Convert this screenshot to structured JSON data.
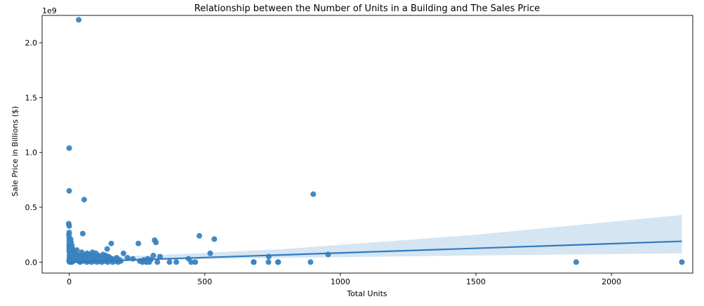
{
  "chart_data": {
    "type": "scatter",
    "title": "Relationship between the Number of Units in a Building and The Sales Price",
    "xlabel": "Total Units",
    "ylabel": "Sale Price in Billions ($)",
    "y_offset_text": "1e9",
    "xlim": [
      -100,
      2300
    ],
    "ylim": [
      -0.1,
      2.25
    ],
    "xticks": [
      0,
      500,
      1000,
      1500,
      2000
    ],
    "xtick_labels": [
      "0",
      "500",
      "1000",
      "1500",
      "2000"
    ],
    "yticks": [
      0.0,
      0.5,
      1.0,
      1.5,
      2.0
    ],
    "ytick_labels": [
      "0.0",
      "0.5",
      "1.0",
      "1.5",
      "2.0"
    ],
    "grid": false,
    "series": [
      {
        "color": "#3a83bf",
        "points": [
          [
            35,
            2.21
          ],
          [
            0,
            1.04
          ],
          [
            0,
            0.65
          ],
          [
            55,
            0.57
          ],
          [
            900,
            0.62
          ],
          [
            -2,
            0.35
          ],
          [
            0,
            0.33
          ],
          [
            0,
            0.27
          ],
          [
            -1,
            0.25
          ],
          [
            0,
            0.22
          ],
          [
            0,
            0.19
          ],
          [
            0,
            0.16
          ],
          [
            0,
            0.14
          ],
          [
            0,
            0.12
          ],
          [
            0,
            0.1
          ],
          [
            2,
            0.08
          ],
          [
            1,
            0.06
          ],
          [
            3,
            0.05
          ],
          [
            1,
            0.04
          ],
          [
            2,
            0.03
          ],
          [
            0,
            0.02
          ],
          [
            1,
            0.015
          ],
          [
            2,
            0.01
          ],
          [
            0,
            0.005
          ],
          [
            3,
            0.0
          ],
          [
            5,
            0.21
          ],
          [
            7,
            0.18
          ],
          [
            10,
            0.15
          ],
          [
            12,
            0.12
          ],
          [
            8,
            0.1
          ],
          [
            6,
            0.09
          ],
          [
            4,
            0.07
          ],
          [
            9,
            0.05
          ],
          [
            11,
            0.03
          ],
          [
            13,
            0.02
          ],
          [
            15,
            0.01
          ],
          [
            5,
            0.005
          ],
          [
            8,
            0.0
          ],
          [
            10,
            0.0
          ],
          [
            14,
            0.04
          ],
          [
            18,
            0.06
          ],
          [
            20,
            0.09
          ],
          [
            22,
            0.04
          ],
          [
            25,
            0.02
          ],
          [
            28,
            0.11
          ],
          [
            30,
            0.05
          ],
          [
            32,
            0.02
          ],
          [
            35,
            0.01
          ],
          [
            38,
            0.03
          ],
          [
            40,
            0.0
          ],
          [
            42,
            0.06
          ],
          [
            45,
            0.02
          ],
          [
            48,
            0.04
          ],
          [
            50,
            0.26
          ],
          [
            52,
            0.01
          ],
          [
            55,
            0.05
          ],
          [
            58,
            0.03
          ],
          [
            60,
            0.07
          ],
          [
            62,
            0.02
          ],
          [
            65,
            0.0
          ],
          [
            68,
            0.04
          ],
          [
            70,
            0.06
          ],
          [
            72,
            0.01
          ],
          [
            75,
            0.03
          ],
          [
            78,
            0.05
          ],
          [
            80,
            0.02
          ],
          [
            82,
            0.0
          ],
          [
            85,
            0.04
          ],
          [
            88,
            0.06
          ],
          [
            90,
            0.01
          ],
          [
            92,
            0.03
          ],
          [
            95,
            0.02
          ],
          [
            98,
            0.08
          ],
          [
            100,
            0.05
          ],
          [
            102,
            0.0
          ],
          [
            105,
            0.03
          ],
          [
            108,
            0.06
          ],
          [
            110,
            0.01
          ],
          [
            112,
            0.04
          ],
          [
            115,
            0.02
          ],
          [
            118,
            0.05
          ],
          [
            120,
            0.0
          ],
          [
            122,
            0.03
          ],
          [
            125,
            0.07
          ],
          [
            128,
            0.02
          ],
          [
            130,
            0.04
          ],
          [
            132,
            0.01
          ],
          [
            135,
            0.06
          ],
          [
            138,
            0.03
          ],
          [
            140,
            0.12
          ],
          [
            142,
            0.0
          ],
          [
            145,
            0.05
          ],
          [
            148,
            0.02
          ],
          [
            150,
            0.04
          ],
          [
            155,
            0.17
          ],
          [
            158,
            0.03
          ],
          [
            160,
            0.0
          ],
          [
            165,
            0.02
          ],
          [
            170,
            0.01
          ],
          [
            175,
            0.04
          ],
          [
            180,
            0.0
          ],
          [
            185,
            0.02
          ],
          [
            190,
            0.01
          ],
          [
            200,
            0.08
          ],
          [
            215,
            0.04
          ],
          [
            235,
            0.03
          ],
          [
            255,
            0.17
          ],
          [
            260,
            0.01
          ],
          [
            270,
            0.0
          ],
          [
            275,
            0.02
          ],
          [
            280,
            0.01
          ],
          [
            285,
            0.0
          ],
          [
            290,
            0.03
          ],
          [
            295,
            0.0
          ],
          [
            300,
            0.02
          ],
          [
            310,
            0.06
          ],
          [
            315,
            0.2
          ],
          [
            320,
            0.18
          ],
          [
            325,
            0.0
          ],
          [
            335,
            0.05
          ],
          [
            370,
            0.0
          ],
          [
            395,
            0.0
          ],
          [
            440,
            0.03
          ],
          [
            450,
            0.0
          ],
          [
            465,
            0.0
          ],
          [
            480,
            0.24
          ],
          [
            520,
            0.08
          ],
          [
            535,
            0.21
          ],
          [
            680,
            0.0
          ],
          [
            681,
            0.0
          ],
          [
            735,
            0.0
          ],
          [
            736,
            0.05
          ],
          [
            770,
            0.0
          ],
          [
            771,
            0.0
          ],
          [
            890,
            0.0
          ],
          [
            955,
            0.07
          ],
          [
            1870,
            0.0
          ],
          [
            2260,
            0.0
          ],
          [
            3,
            0.11
          ],
          [
            6,
            0.13
          ],
          [
            16,
            0.07
          ],
          [
            24,
            0.08
          ],
          [
            36,
            0.06
          ],
          [
            46,
            0.09
          ],
          [
            56,
            0.04
          ],
          [
            66,
            0.08
          ],
          [
            76,
            0.07
          ],
          [
            86,
            0.09
          ]
        ]
      }
    ],
    "regression": {
      "color": "#2f7bbf",
      "band_color": "#c7dcee",
      "line": [
        [
          0,
          0.0
        ],
        [
          2260,
          0.19
        ]
      ],
      "ci_upper": [
        [
          0,
          0.04
        ],
        [
          300,
          0.06
        ],
        [
          800,
          0.12
        ],
        [
          1500,
          0.25
        ],
        [
          2260,
          0.43
        ]
      ],
      "ci_lower": [
        [
          0,
          -0.01
        ],
        [
          300,
          0.02
        ],
        [
          800,
          0.04
        ],
        [
          1500,
          0.06
        ],
        [
          2260,
          0.08
        ]
      ]
    }
  }
}
